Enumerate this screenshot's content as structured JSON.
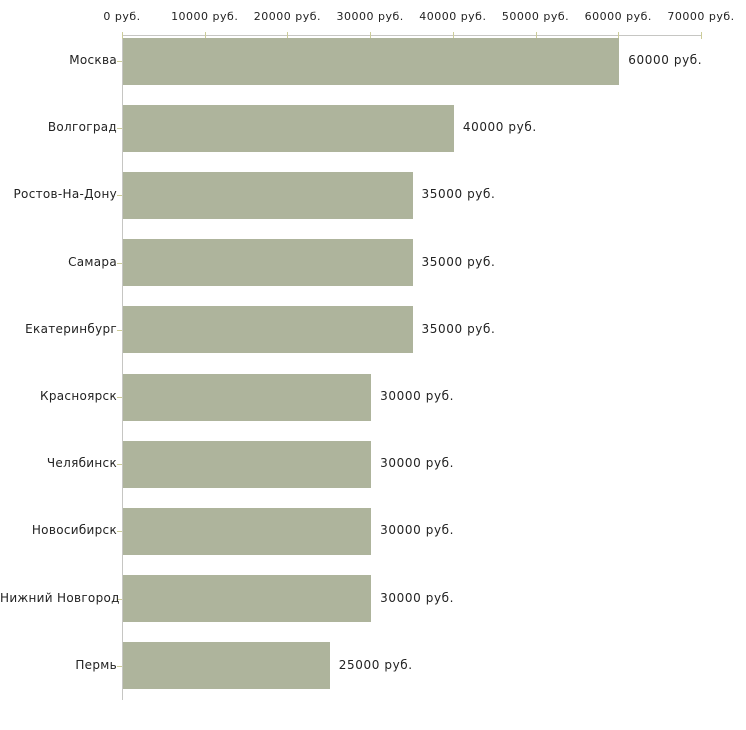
{
  "chart_data": {
    "type": "bar",
    "orientation": "horizontal",
    "title": "",
    "xlabel": "",
    "ylabel": "",
    "unit": "руб.",
    "xlim": [
      0,
      70000
    ],
    "grid": false,
    "legend": false,
    "categories": [
      "Москва",
      "Волгоград",
      "Ростов-На-Дону",
      "Самара",
      "Екатеринбург",
      "Красноярск",
      "Челябинск",
      "Новосибирск",
      "Нижний Новгород",
      "Пермь"
    ],
    "values": [
      60000,
      40000,
      35000,
      35000,
      35000,
      30000,
      30000,
      30000,
      30000,
      25000
    ],
    "value_labels": [
      "60000 руб.",
      "40000 руб.",
      "35000 руб.",
      "35000 руб.",
      "35000 руб.",
      "30000 руб.",
      "30000 руб.",
      "30000 руб.",
      "30000 руб.",
      "25000 руб."
    ],
    "x_tick_values": [
      0,
      10000,
      20000,
      30000,
      40000,
      50000,
      60000,
      70000
    ],
    "x_tick_labels": [
      "0 руб.",
      "10000 руб.",
      "20000 руб.",
      "30000 руб.",
      "40000 руб.",
      "50000 руб.",
      "60000 руб.",
      "70000 руб."
    ],
    "colors": {
      "bar": "#aeb49c",
      "axis_line": "#c6c6c3",
      "tick": "#cccc99",
      "text": "#222222",
      "background": "#ffffff"
    }
  }
}
